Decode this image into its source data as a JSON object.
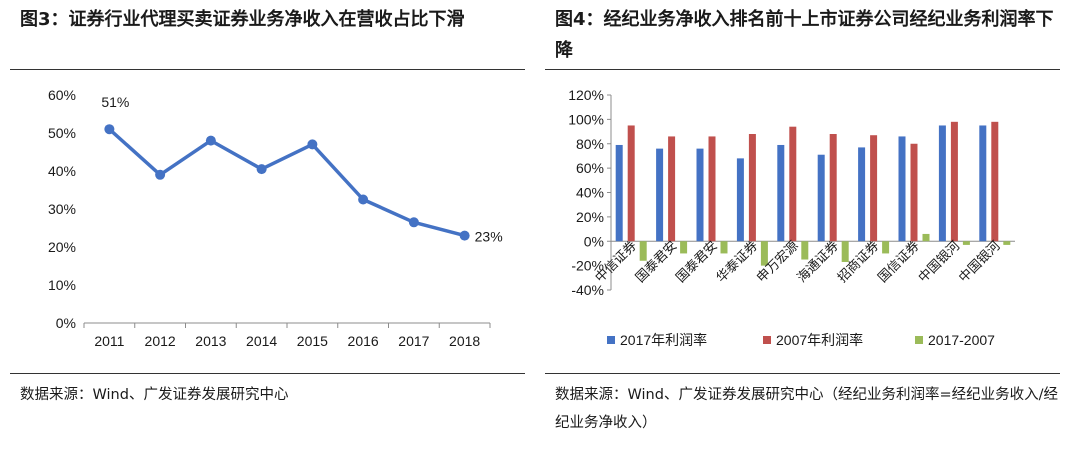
{
  "left": {
    "figure_title": "图3：证券行业代理买卖证券业务净收入在营收占比下滑",
    "source": "数据来源：Wind、广发证券发展研究中心"
  },
  "right": {
    "figure_title": "图4：经纪业务净收入排名前十上市证券公司经纪业务利润率下降",
    "source": "数据来源：Wind、广发证券发展研究中心（经纪业务利润率=经纪业务收入/经纪业务净收入）"
  },
  "chart_data": [
    {
      "type": "line",
      "title": "",
      "x": [
        "2011",
        "2012",
        "2013",
        "2014",
        "2015",
        "2016",
        "2017",
        "2018"
      ],
      "series": [
        {
          "name": "",
          "values": [
            51,
            39,
            48,
            40.5,
            47,
            32.5,
            26.5,
            23
          ]
        }
      ],
      "point_labels": [
        {
          "index": 0,
          "text": "51%"
        },
        {
          "index": 7,
          "text": "23%"
        }
      ],
      "yticks": [
        "0%",
        "10%",
        "20%",
        "30%",
        "40%",
        "50%",
        "60%"
      ],
      "ylim": [
        0,
        60
      ],
      "grid": false,
      "color": "#4472C4"
    },
    {
      "type": "bar",
      "title": "",
      "categories": [
        "中信证券",
        "国泰君安",
        "国泰君安",
        "华泰证券",
        "申万宏源",
        "海通证券",
        "招商证券",
        "国信证券",
        "中国银河",
        "中国银河"
      ],
      "series": [
        {
          "name": "2017年利润率",
          "color": "#4472C4",
          "values": [
            79,
            76,
            76,
            68,
            79,
            71,
            77,
            86,
            95,
            95
          ]
        },
        {
          "name": "2007年利润率",
          "color": "#C0504D",
          "values": [
            95,
            86,
            86,
            88,
            94,
            88,
            87,
            80,
            98,
            98
          ]
        },
        {
          "name": "2017-2007",
          "color": "#9BBB59",
          "values": [
            -16,
            -10,
            -10,
            -20,
            -15,
            -17,
            -10,
            6,
            -3,
            -3
          ]
        }
      ],
      "yticks": [
        "-40%",
        "-20%",
        "0%",
        "20%",
        "40%",
        "60%",
        "80%",
        "100%",
        "120%"
      ],
      "ylim": [
        -40,
        120
      ],
      "grid": false,
      "legend": "bottom"
    }
  ]
}
